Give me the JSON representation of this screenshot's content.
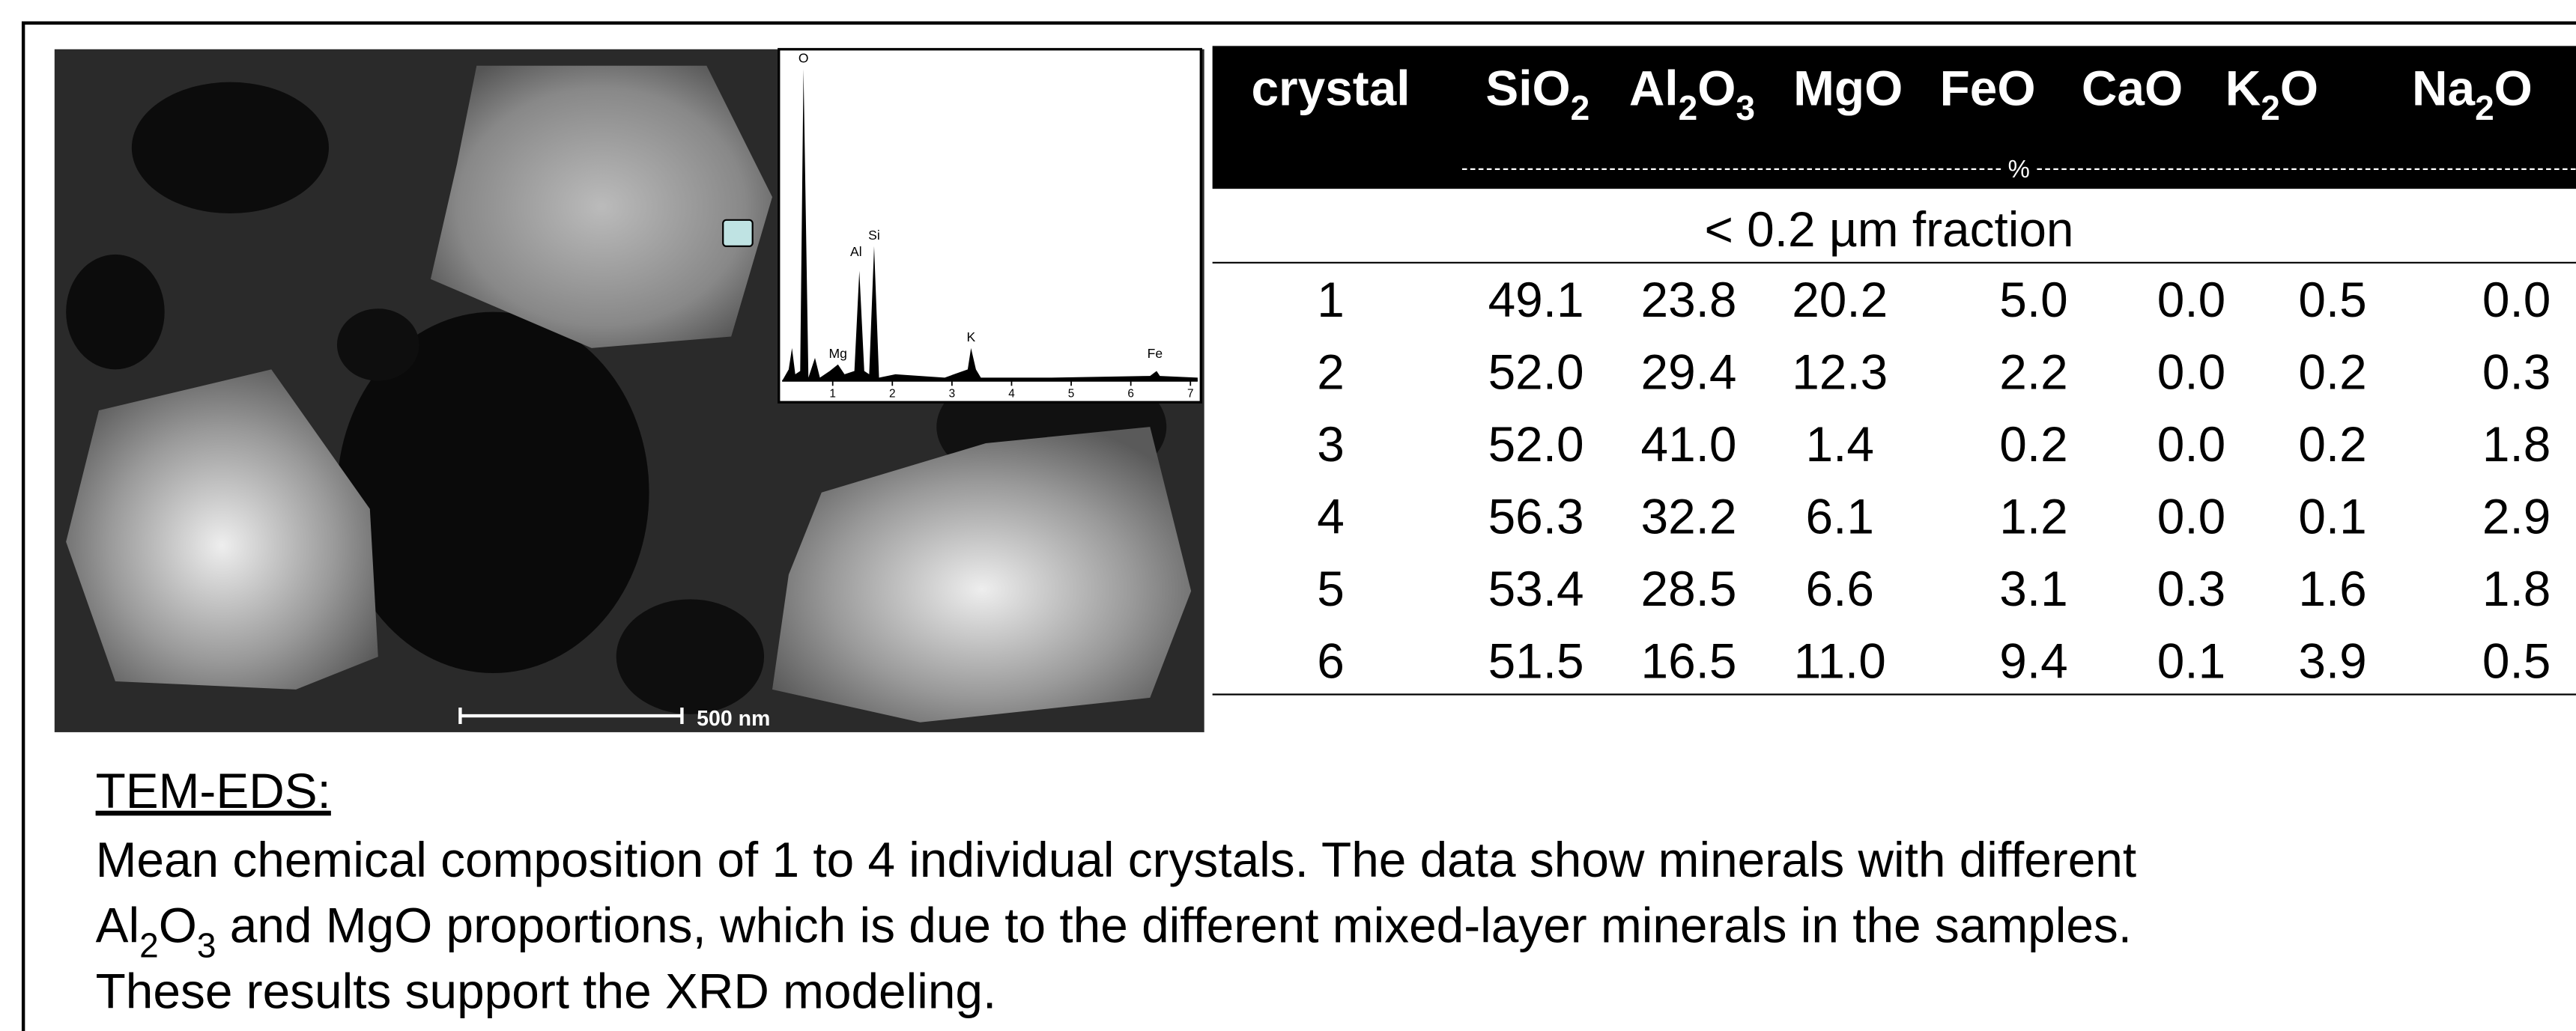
{
  "figure": {
    "spectrum": {
      "peak_labels": [
        "O",
        "Al",
        "Si",
        "Mg",
        "K",
        "Fe"
      ],
      "axis_ticks": [
        1,
        2,
        3,
        4,
        5,
        6,
        7
      ]
    },
    "scale_bar": "500 nm"
  },
  "table": {
    "columns": [
      [
        "crystal"
      ],
      [
        "SiO",
        "2"
      ],
      [
        "Al",
        "2",
        "O",
        "3"
      ],
      [
        "MgO"
      ],
      [
        "FeO"
      ],
      [
        "CaO"
      ],
      [
        "K",
        "2",
        "O"
      ],
      [
        "Na",
        "2",
        "O"
      ]
    ],
    "unit": "%",
    "section": "< 0.2 µm fraction",
    "rows": [
      [
        "1",
        "49.1",
        "23.8",
        "20.2",
        "5.0",
        "0.0",
        "0.5",
        "0.0"
      ],
      [
        "2",
        "52.0",
        "29.4",
        "12.3",
        "2.2",
        "0.0",
        "0.2",
        "0.3"
      ],
      [
        "3",
        "52.0",
        "41.0",
        "1.4",
        "0.2",
        "0.0",
        "0.2",
        "1.8"
      ],
      [
        "4",
        "56.3",
        "32.2",
        "6.1",
        "1.2",
        "0.0",
        "0.1",
        "2.9"
      ],
      [
        "5",
        "53.4",
        "28.5",
        "6.6",
        "3.1",
        "0.3",
        "1.6",
        "1.8"
      ],
      [
        "6",
        "51.5",
        "16.5",
        "11.0",
        "9.4",
        "0.1",
        "3.9",
        "0.5"
      ]
    ]
  },
  "text": {
    "heading": "TEM-EDS:",
    "lines": [
      [
        "Mean chemical composition of 1 to 4 individual crystals. The data show minerals with different"
      ],
      [
        "Al",
        "2",
        "O",
        "3",
        " and MgO proportions, which is due to the different mixed-layer minerals in the samples."
      ],
      [
        "These results support the XRD modeling."
      ]
    ]
  }
}
